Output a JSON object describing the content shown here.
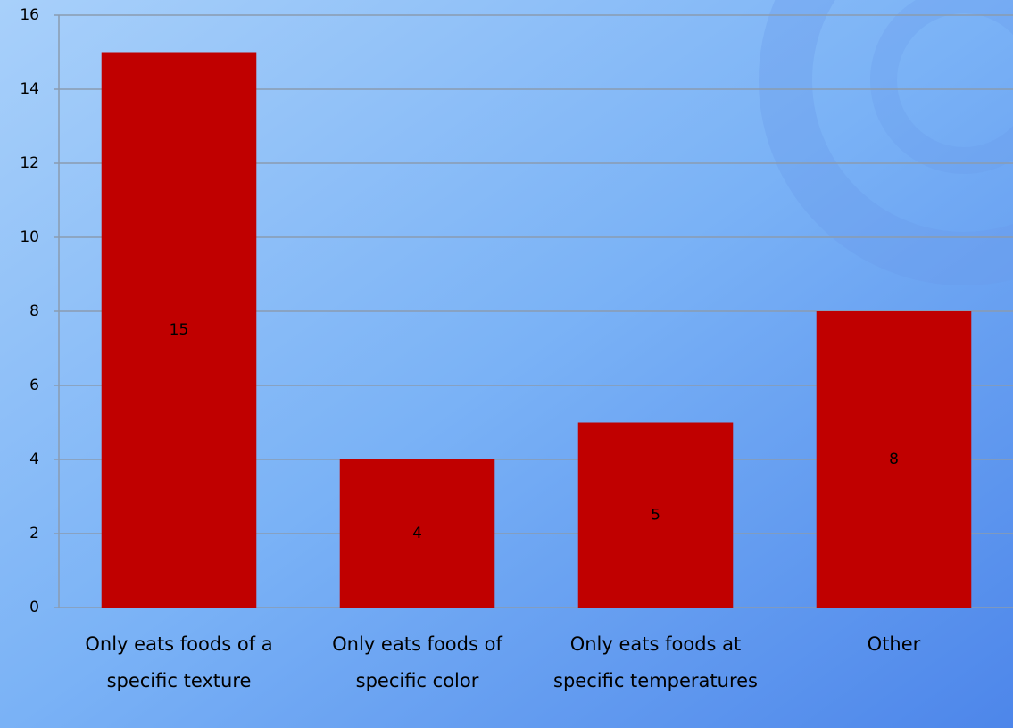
{
  "chart_data": {
    "type": "bar",
    "categories": [
      "Only eats foods of a specific texture",
      "Only eats foods of specific color",
      "Only eats foods at specific temperatures",
      "Other"
    ],
    "values": [
      15,
      4,
      5,
      8
    ],
    "color": "#c00000",
    "data_labels": true,
    "ylim": [
      0,
      16
    ],
    "yticks": [
      0,
      2,
      4,
      6,
      8,
      10,
      12,
      14,
      16
    ],
    "grid": true
  }
}
